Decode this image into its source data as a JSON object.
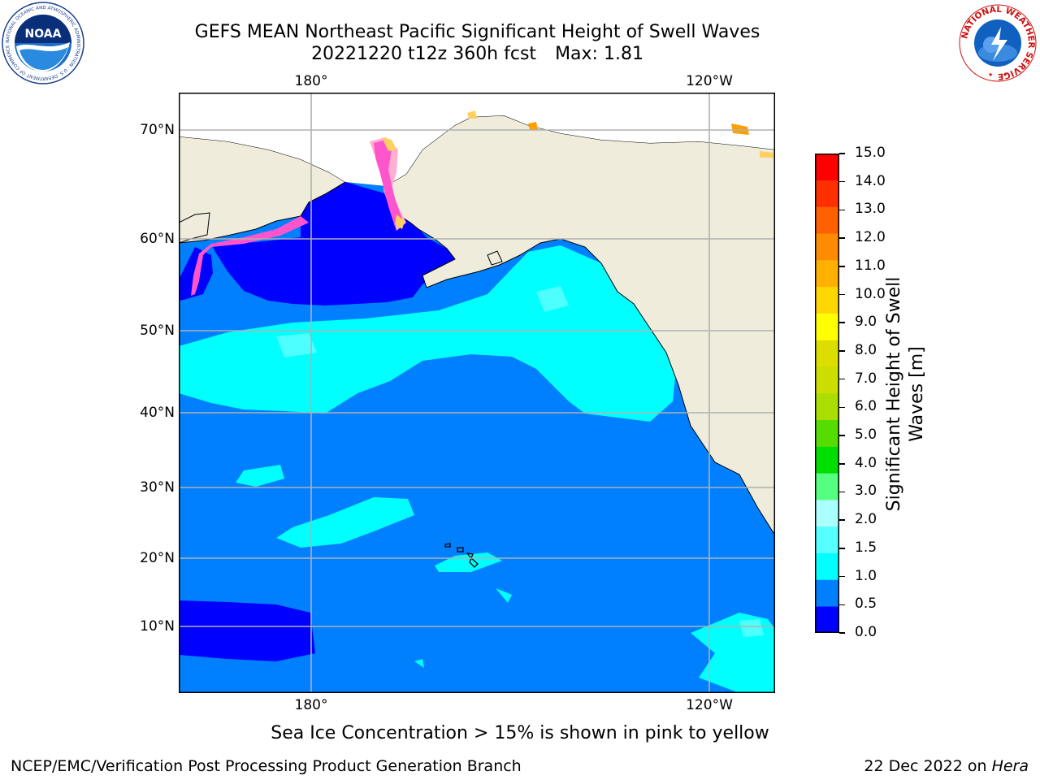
{
  "header": {
    "title_line1": "GEFS MEAN Northeast Pacific Significant Height of Swell Waves",
    "title_line2_run": "20221220 t12z 360h fcst",
    "title_line2_max": "Max: 1.81"
  },
  "logos": {
    "noaa_logo_text": "NOAA",
    "noaa_ring_text": "NATIONAL OCEANIC AND ATMOSPHERIC ADMINISTRATION · U.S. DEPARTMENT OF COMMERCE",
    "nws_ring_text": "NATIONAL WEATHER SERVICE"
  },
  "map": {
    "lon_labels_top": [
      "180°",
      "120°W"
    ],
    "lon_labels_bottom": [
      "180°",
      "120°W"
    ],
    "lat_labels": [
      "70°N",
      "60°N",
      "50°N",
      "40°N",
      "30°N",
      "20°N",
      "10°N"
    ],
    "gridlines": true,
    "ocean_color": "#0080ff",
    "land_color": "#efecdc",
    "ice_colors": [
      "#ff55cc",
      "#ffb0d0",
      "#ffd060",
      "#ffa000"
    ]
  },
  "colorbar": {
    "title": "Significant Height of Swell Waves [m]",
    "tick_labels": [
      "15.0",
      "14.0",
      "13.0",
      "12.0",
      "11.0",
      "10.0",
      "9.0",
      "8.0",
      "7.0",
      "6.0",
      "5.0",
      "4.0",
      "3.0",
      "2.0",
      "1.5",
      "1.0",
      "0.5",
      "0.0"
    ],
    "colors": [
      "#0000ff",
      "#0080ff",
      "#00ffff",
      "#55ffff",
      "#aaffff",
      "#55ff80",
      "#00dd00",
      "#55dd00",
      "#aadd00",
      "#ccdd00",
      "#dddd00",
      "#ffff00",
      "#ffd700",
      "#ffb000",
      "#ff8c00",
      "#ff6000",
      "#ff3000",
      "#ff0000"
    ]
  },
  "footer": {
    "ice_note": "Sea Ice Concentration > 15% is shown in pink to yellow",
    "org": "NCEP/EMC/Verification Post Processing Product Generation Branch",
    "date": "22 Dec 2022 on",
    "machine": "Hera"
  }
}
